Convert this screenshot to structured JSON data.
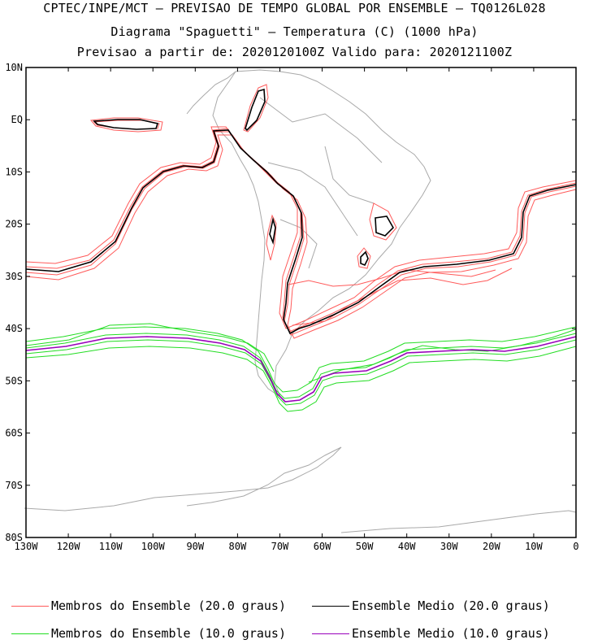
{
  "header": {
    "line1": "CPTEC/INPE/MCT – PREVISAO DE TEMPO GLOBAL POR ENSEMBLE – TQ0126L028",
    "line2": "Diagrama \"Spaguetti\" – Temperatura (C) (1000 hPa)",
    "line3": "Previsao a partir de: 2020120100Z  Valido para: 2020121100Z"
  },
  "map": {
    "lon_range": [
      -130,
      0
    ],
    "lat_range": [
      -80,
      10
    ],
    "lon_ticks": [
      "130W",
      "120W",
      "110W",
      "100W",
      "90W",
      "80W",
      "70W",
      "60W",
      "50W",
      "40W",
      "30W",
      "20W",
      "10W",
      "0"
    ],
    "lat_ticks": [
      "10N",
      "EQ",
      "10S",
      "20S",
      "30S",
      "40S",
      "50S",
      "60S",
      "70S",
      "80S"
    ],
    "coastline_color": "#a9a9a9"
  },
  "legend": {
    "members_20": {
      "label": "Membros do Ensemble (20.0 graus)",
      "color": "#ff5a5a"
    },
    "mean_20": {
      "label": "Ensemble Medio (20.0 graus)",
      "color": "#000000"
    },
    "members_10": {
      "label": "Membros do Ensemble (10.0 graus)",
      "color": "#22dd22"
    },
    "mean_10": {
      "label": "Ensemble Medio (10.0 graus)",
      "color": "#9900bb"
    }
  }
}
